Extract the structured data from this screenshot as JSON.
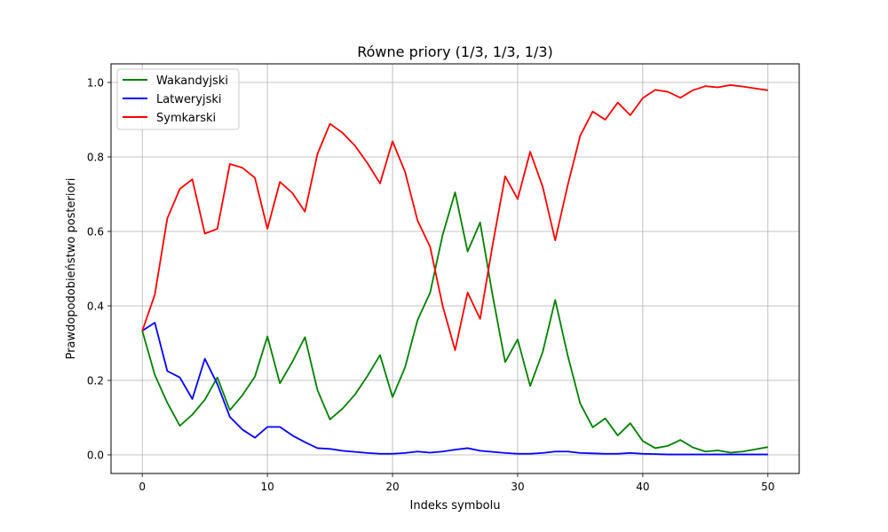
{
  "chart_data": {
    "type": "line",
    "title": "Równe priory (1/3, 1/3, 1/3)",
    "xlabel": "Indeks symbolu",
    "ylabel": "Prawdopodobieństwo posteriori",
    "xlim": [
      -2.5,
      52.5
    ],
    "ylim": [
      -0.05,
      1.05
    ],
    "xticks": [
      0,
      10,
      20,
      30,
      40,
      50
    ],
    "xtick_labels": [
      "0",
      "10",
      "20",
      "30",
      "40",
      "50"
    ],
    "yticks": [
      0.0,
      0.2,
      0.4,
      0.6,
      0.8,
      1.0
    ],
    "ytick_labels": [
      "0.0",
      "0.2",
      "0.4",
      "0.6",
      "0.8",
      "1.0"
    ],
    "grid": true,
    "legend_position": "top-left",
    "x": [
      0,
      1,
      2,
      3,
      4,
      5,
      6,
      7,
      8,
      9,
      10,
      11,
      12,
      13,
      14,
      15,
      16,
      17,
      18,
      19,
      20,
      21,
      22,
      23,
      24,
      25,
      26,
      27,
      28,
      29,
      30,
      31,
      32,
      33,
      34,
      35,
      36,
      37,
      38,
      39,
      40,
      41,
      42,
      43,
      44,
      45,
      46,
      47,
      48,
      49,
      50
    ],
    "series": [
      {
        "name": "Wakandyjski",
        "color": "#008000",
        "values": [
          0.333,
          0.215,
          0.14,
          0.078,
          0.108,
          0.148,
          0.208,
          0.12,
          0.16,
          0.21,
          0.318,
          0.192,
          0.25,
          0.316,
          0.174,
          0.095,
          0.124,
          0.162,
          0.212,
          0.268,
          0.155,
          0.235,
          0.362,
          0.435,
          0.59,
          0.705,
          0.546,
          0.624,
          0.428,
          0.249,
          0.31,
          0.185,
          0.276,
          0.416,
          0.267,
          0.138,
          0.074,
          0.098,
          0.052,
          0.085,
          0.037,
          0.018,
          0.024,
          0.04,
          0.02,
          0.009,
          0.012,
          0.006,
          0.009,
          0.015,
          0.021
        ]
      },
      {
        "name": "Latweryjski",
        "color": "#0000ff",
        "values": [
          0.333,
          0.355,
          0.225,
          0.208,
          0.15,
          0.258,
          0.19,
          0.102,
          0.068,
          0.046,
          0.075,
          0.075,
          0.052,
          0.034,
          0.018,
          0.016,
          0.011,
          0.008,
          0.005,
          0.003,
          0.003,
          0.005,
          0.009,
          0.006,
          0.009,
          0.014,
          0.018,
          0.011,
          0.008,
          0.005,
          0.003,
          0.003,
          0.005,
          0.009,
          0.009,
          0.005,
          0.004,
          0.003,
          0.003,
          0.005,
          0.003,
          0.002,
          0.001,
          0.001,
          0.001,
          0.001,
          0.001,
          0.001,
          0.001,
          0.001,
          0.001
        ]
      },
      {
        "name": "Symkarski",
        "color": "#ff0000",
        "values": [
          0.333,
          0.43,
          0.635,
          0.714,
          0.74,
          0.594,
          0.607,
          0.781,
          0.771,
          0.744,
          0.607,
          0.733,
          0.703,
          0.653,
          0.808,
          0.889,
          0.865,
          0.83,
          0.783,
          0.729,
          0.842,
          0.76,
          0.629,
          0.559,
          0.401,
          0.281,
          0.436,
          0.365,
          0.564,
          0.748,
          0.687,
          0.814,
          0.72,
          0.576,
          0.724,
          0.857,
          0.922,
          0.9,
          0.946,
          0.912,
          0.958,
          0.98,
          0.975,
          0.959,
          0.979,
          0.99,
          0.987,
          0.993,
          0.989,
          0.984,
          0.979
        ]
      }
    ]
  }
}
